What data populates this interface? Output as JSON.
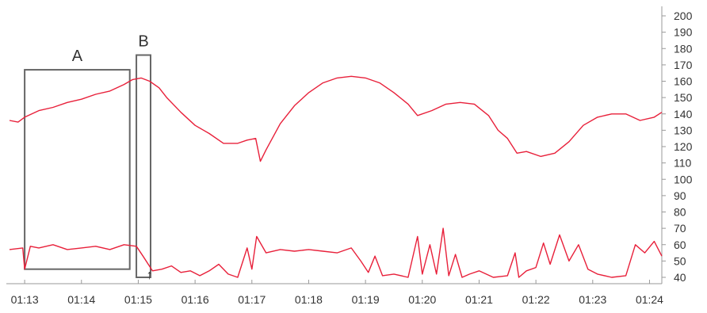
{
  "chart_data": {
    "type": "line",
    "title": "",
    "xlabel": "",
    "ylabel": "",
    "ylim": [
      40,
      200
    ],
    "xlim": [
      "01:12:44",
      "01:24:13"
    ],
    "grid": false,
    "legend": "none",
    "yticks": [
      40,
      50,
      60,
      70,
      80,
      90,
      100,
      110,
      120,
      130,
      140,
      150,
      160,
      170,
      180,
      190,
      200
    ],
    "xticks": [
      "01:13",
      "01:14",
      "01:15",
      "01:16",
      "01:17",
      "01:18",
      "01:19",
      "01:20",
      "01:21",
      "01:22",
      "01:23",
      "01:24"
    ],
    "series": [
      {
        "color": "#e8203a",
        "x": [
          "01:12:44",
          "01:12:53",
          "01:13:00",
          "01:13:15",
          "01:13:30",
          "01:13:45",
          "01:14:00",
          "01:14:15",
          "01:14:30",
          "01:14:45",
          "01:14:54",
          "01:15:03",
          "01:15:12",
          "01:15:22",
          "01:15:30",
          "01:15:45",
          "01:16:00",
          "01:16:15",
          "01:16:30",
          "01:16:45",
          "01:16:55",
          "01:17:04",
          "01:17:09",
          "01:17:15",
          "01:17:30",
          "01:17:45",
          "01:18:00",
          "01:18:15",
          "01:18:30",
          "01:18:45",
          "01:19:00",
          "01:19:15",
          "01:19:30",
          "01:19:45",
          "01:19:55",
          "01:20:10",
          "01:20:25",
          "01:20:40",
          "01:20:55",
          "01:21:10",
          "01:21:20",
          "01:21:30",
          "01:21:40",
          "01:21:50",
          "01:22:05",
          "01:22:20",
          "01:22:35",
          "01:22:50",
          "01:23:05",
          "01:23:20",
          "01:23:35",
          "01:23:50",
          "01:24:05",
          "01:24:13"
        ],
        "y": [
          136,
          135,
          138,
          142,
          144,
          147,
          149,
          152,
          154,
          158,
          161,
          162,
          160,
          156,
          150,
          141,
          133,
          128,
          122,
          122,
          124,
          125,
          111,
          118,
          134,
          145,
          153,
          159,
          162,
          163,
          162,
          159,
          153,
          146,
          139,
          142,
          146,
          147,
          146,
          139,
          130,
          125,
          116,
          117,
          114,
          116,
          123,
          133,
          138,
          140,
          140,
          136,
          138,
          141
        ]
      },
      {
        "color": "#e8203a",
        "x": [
          "01:12:44",
          "01:12:58",
          "01:13:00",
          "01:13:06",
          "01:13:15",
          "01:13:30",
          "01:13:45",
          "01:14:00",
          "01:14:15",
          "01:14:30",
          "01:14:45",
          "01:14:58",
          "01:15:05",
          "01:15:15",
          "01:15:25",
          "01:15:35",
          "01:15:45",
          "01:15:55",
          "01:16:05",
          "01:16:15",
          "01:16:25",
          "01:16:35",
          "01:16:45",
          "01:16:55",
          "01:17:00",
          "01:17:05",
          "01:17:15",
          "01:17:30",
          "01:17:45",
          "01:18:00",
          "01:18:15",
          "01:18:30",
          "01:18:45",
          "01:18:55",
          "01:19:03",
          "01:19:10",
          "01:19:18",
          "01:19:30",
          "01:19:45",
          "01:19:55",
          "01:20:00",
          "01:20:08",
          "01:20:15",
          "01:20:22",
          "01:20:28",
          "01:20:35",
          "01:20:42",
          "01:20:50",
          "01:21:00",
          "01:21:15",
          "01:21:30",
          "01:21:38",
          "01:21:42",
          "01:21:50",
          "01:22:00",
          "01:22:08",
          "01:22:15",
          "01:22:25",
          "01:22:35",
          "01:22:45",
          "01:22:55",
          "01:23:05",
          "01:23:20",
          "01:23:35",
          "01:23:45",
          "01:23:55",
          "01:24:05",
          "01:24:13"
        ],
        "y": [
          57,
          58,
          45,
          59,
          58,
          60,
          57,
          58,
          59,
          57,
          60,
          59,
          53,
          44,
          45,
          47,
          43,
          44,
          41,
          44,
          48,
          42,
          40,
          58,
          45,
          65,
          55,
          57,
          56,
          57,
          56,
          55,
          58,
          50,
          43,
          53,
          41,
          42,
          40,
          65,
          42,
          60,
          42,
          70,
          41,
          54,
          40,
          42,
          44,
          40,
          41,
          55,
          40,
          44,
          46,
          61,
          48,
          66,
          50,
          60,
          45,
          42,
          40,
          41,
          60,
          55,
          62,
          53
        ]
      }
    ],
    "annotations": [
      {
        "label": "A",
        "x_start": "01:13:00",
        "x_end": "01:14:51",
        "y_bottom": 45,
        "y_top": 167
      },
      {
        "label": "B",
        "x_start": "01:14:58",
        "x_end": "01:15:13",
        "y_bottom": 40,
        "y_top": 176
      },
      {
        "marker": "↑",
        "x": "01:15:12",
        "y": 43
      }
    ]
  }
}
